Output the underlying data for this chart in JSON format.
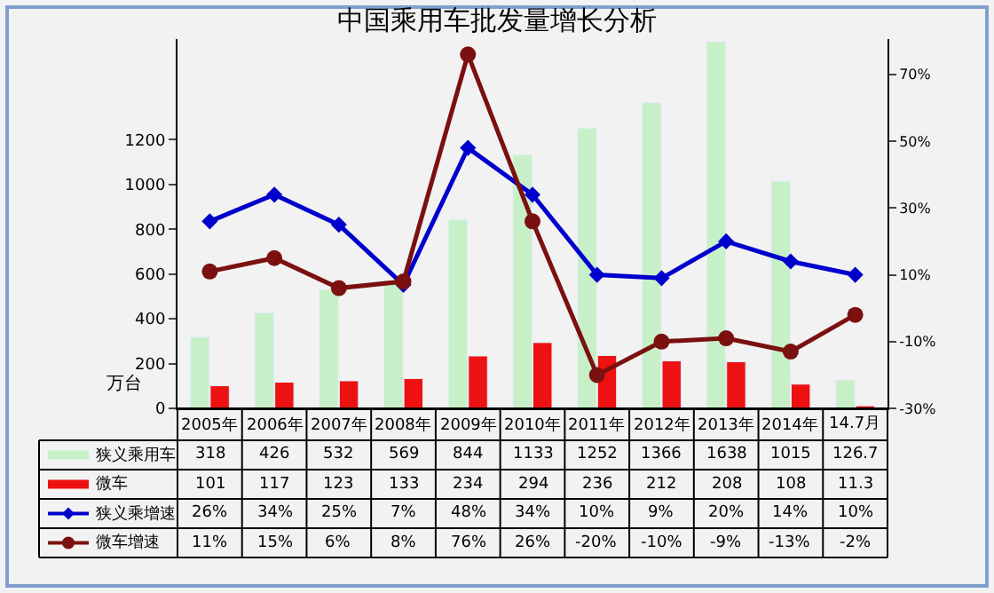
{
  "chart_data": {
    "type": "bar",
    "title": "中国乘用车批发量增长分析",
    "ylabel": "万台",
    "categories": [
      "2005年",
      "2006年",
      "2007年",
      "2008年",
      "2009年",
      "2010年",
      "2011年",
      "2012年",
      "2013年",
      "2014年",
      "14.7月"
    ],
    "series": [
      {
        "name": "狭义乘用车",
        "color": "#c8f0c8",
        "values": [
          318,
          426,
          532,
          569,
          844,
          1133,
          1252,
          1366,
          1638,
          1015,
          126.7
        ],
        "value_labels": [
          "318",
          "426",
          "532",
          "569",
          "844",
          "1133",
          "1252",
          "1366",
          "1638",
          "1015",
          "126.7"
        ]
      },
      {
        "name": "微车",
        "color": "#ee1111",
        "values": [
          101,
          117,
          123,
          133,
          234,
          294,
          236,
          212,
          208,
          108,
          11.3
        ],
        "value_labels": [
          "101",
          "117",
          "123",
          "133",
          "234",
          "294",
          "236",
          "212",
          "208",
          "108",
          "11.3"
        ]
      },
      {
        "name": "狭义乘增速",
        "type": "line",
        "axis": "y2",
        "marker": "diamond",
        "color": "#0000cc",
        "values": [
          26,
          34,
          25,
          7,
          48,
          34,
          10,
          9,
          20,
          14,
          10
        ],
        "value_labels": [
          "26%",
          "34%",
          "25%",
          "7%",
          "48%",
          "34%",
          "10%",
          "9%",
          "20%",
          "14%",
          "10%"
        ]
      },
      {
        "name": "微车增速",
        "type": "line",
        "axis": "y2",
        "marker": "circle",
        "color": "#7b1010",
        "values": [
          11,
          15,
          6,
          8,
          76,
          26,
          -20,
          -10,
          -9,
          -13,
          -2
        ],
        "value_labels": [
          "11%",
          "15%",
          "6%",
          "8%",
          "76%",
          "26%",
          "-20%",
          "-10%",
          "-9%",
          "-13%",
          "-2%"
        ]
      }
    ],
    "ylim": [
      0,
      1650
    ],
    "yticks": [
      0,
      200,
      400,
      600,
      800,
      1000,
      1200
    ],
    "y2lim": [
      -30,
      80.6
    ],
    "y2ticks": [
      {
        "value": -30,
        "label": "-30%"
      },
      {
        "value": -10,
        "label": "-10%"
      },
      {
        "value": 10,
        "label": "10%"
      },
      {
        "value": 30,
        "label": "30%"
      },
      {
        "value": 50,
        "label": "50%"
      },
      {
        "value": 70,
        "label": "70%"
      }
    ],
    "grid": false,
    "legend": "bottom left"
  }
}
